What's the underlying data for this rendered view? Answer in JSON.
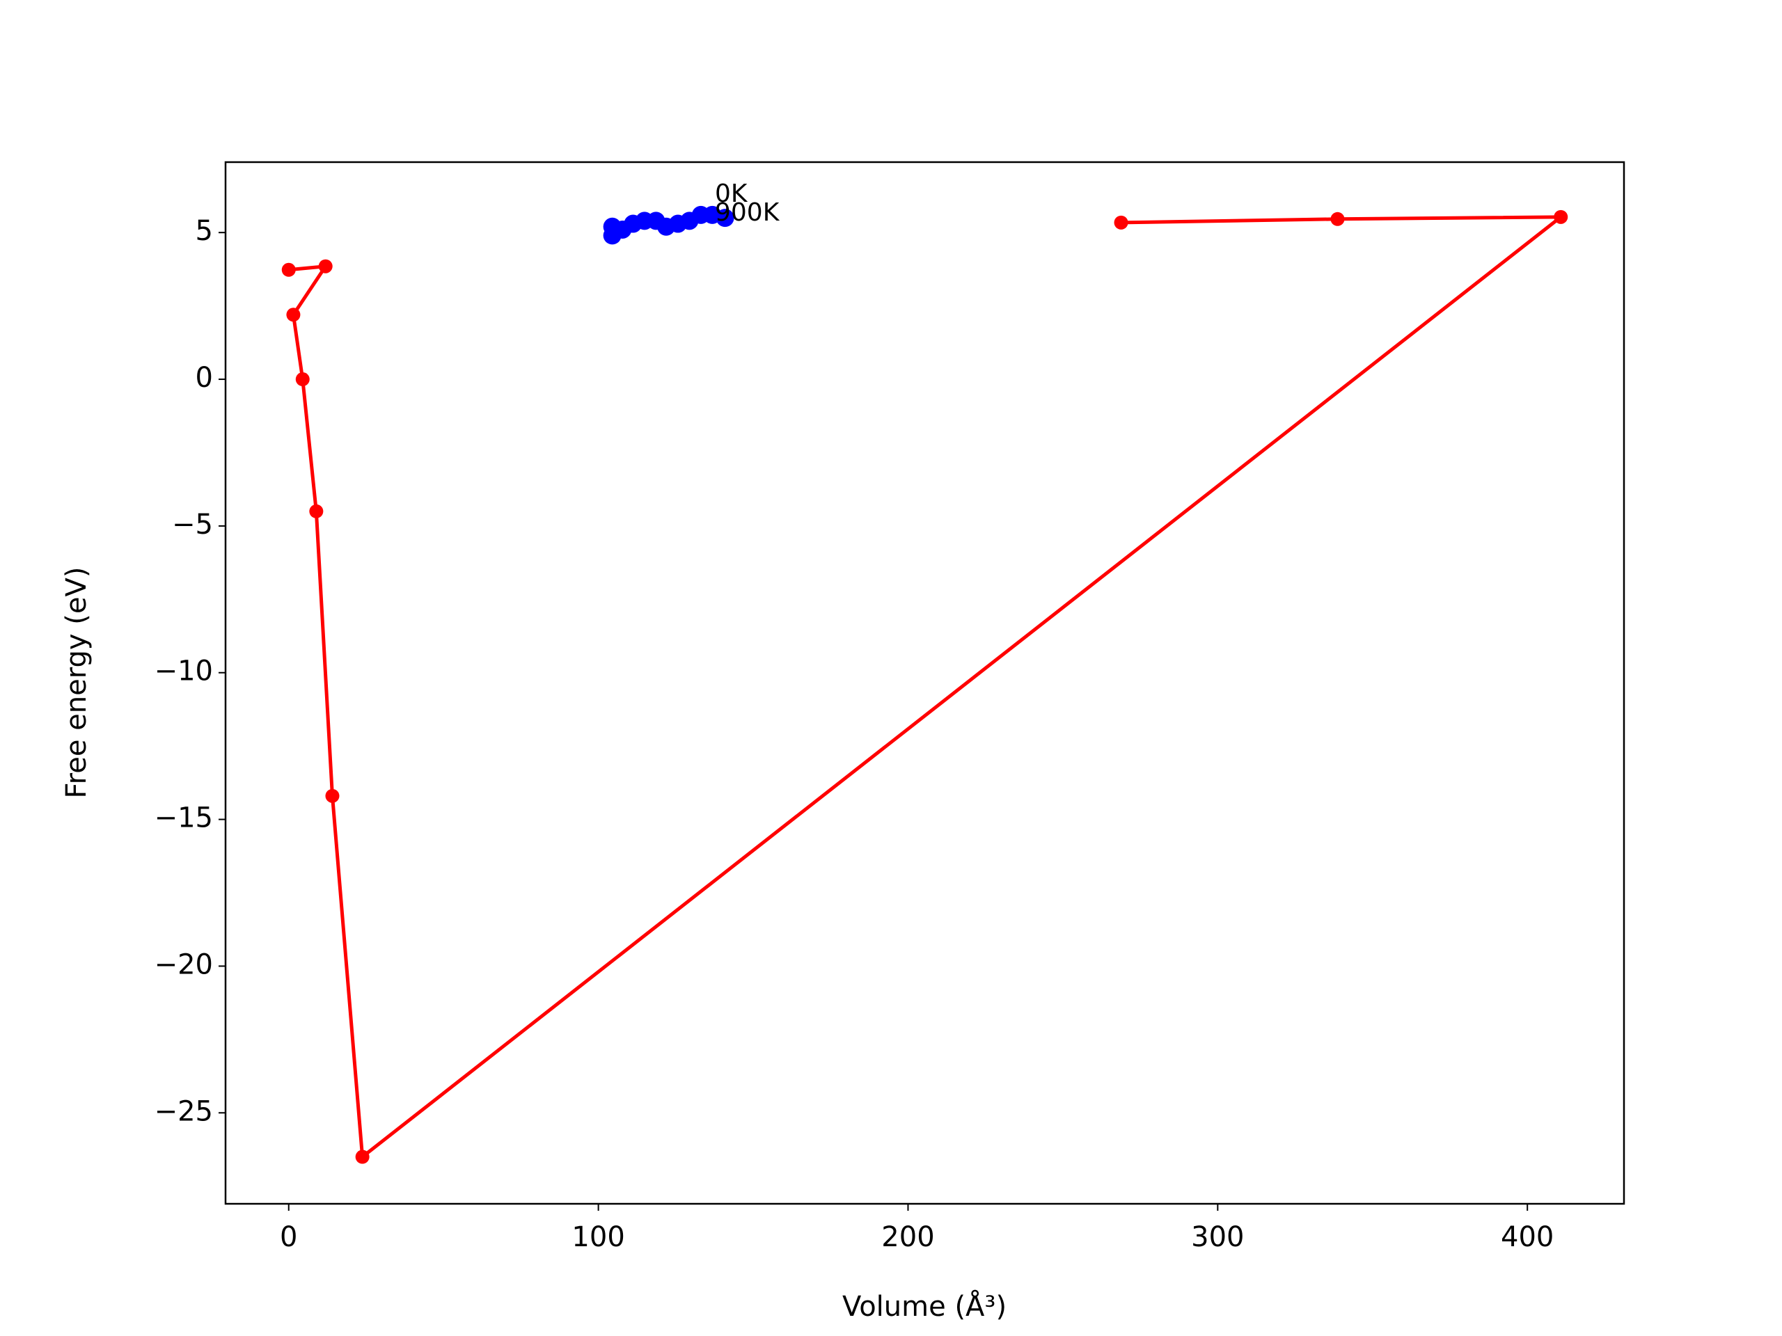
{
  "chart_data": {
    "type": "line",
    "xlabel": "Volume (Å³)",
    "ylabel": "Free energy (eV)",
    "xlim": [
      -20.4,
      431.2
    ],
    "ylim": [
      -28.1,
      7.4
    ],
    "xticks": [
      0,
      100,
      200,
      300,
      400
    ],
    "yticks": [
      {
        "value": -25,
        "label": "−25"
      },
      {
        "value": -20,
        "label": "−20"
      },
      {
        "value": -15,
        "label": "−15"
      },
      {
        "value": -10,
        "label": "−10"
      },
      {
        "value": -5,
        "label": "−5"
      },
      0,
      5
    ],
    "series": [
      {
        "color": "#ff0000",
        "x": [
          0,
          11.9,
          1.5,
          4.5,
          8.9,
          14.1,
          23.8,
          410.8,
          338.7,
          268.8
        ],
        "values": [
          3.73,
          3.85,
          2.2,
          0,
          -4.5,
          -14.2,
          -26.5,
          5.53,
          5.46,
          5.34
        ]
      },
      {
        "color": "#0000ff",
        "x": [
          104.5,
          104.5,
          107.8,
          111.2,
          114.9,
          118.6,
          121.9,
          125.7,
          129.4,
          133.1,
          136.8,
          140.9
        ],
        "values": [
          4.9,
          5.2,
          5.1,
          5.3,
          5.4,
          5.4,
          5.2,
          5.3,
          5.4,
          5.6,
          5.6,
          5.5
        ]
      }
    ],
    "annotations": [
      "0K",
      "900K"
    ]
  }
}
